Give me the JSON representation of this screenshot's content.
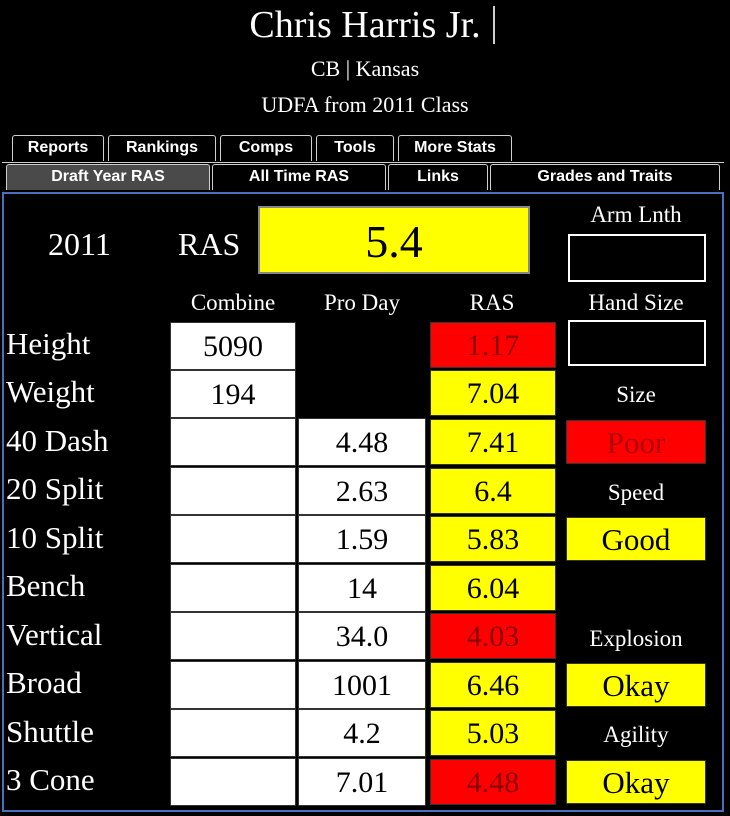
{
  "player": {
    "name": "Chris Harris Jr.",
    "position_school": "CB | Kansas",
    "draft_info": "UDFA from 2011 Class"
  },
  "tabs_top": [
    {
      "label": "Reports"
    },
    {
      "label": "Rankings"
    },
    {
      "label": "Comps"
    },
    {
      "label": "Tools"
    },
    {
      "label": "More Stats"
    }
  ],
  "tabs_bottom": [
    {
      "label": "Draft Year RAS",
      "active": true
    },
    {
      "label": "All Time RAS"
    },
    {
      "label": "Links"
    },
    {
      "label": "Grades and Traits"
    }
  ],
  "summary": {
    "year": "2011",
    "ras_label": "RAS",
    "ras_value": "5.4",
    "arm_length_label": "Arm Lnth",
    "arm_length_value": "",
    "hand_size_label": "Hand Size",
    "hand_size_value": ""
  },
  "columns": {
    "combine": "Combine",
    "pro_day": "Pro Day",
    "ras": "RAS"
  },
  "rows": [
    {
      "label": "Height",
      "combine": "5090",
      "pro_day": "",
      "ras": "1.17",
      "ras_color": "red"
    },
    {
      "label": "Weight",
      "combine": "194",
      "pro_day": "",
      "ras": "7.04",
      "ras_color": "yellow"
    },
    {
      "label": "40 Dash",
      "combine": "",
      "pro_day": "4.48",
      "ras": "7.41",
      "ras_color": "yellow"
    },
    {
      "label": "20 Split",
      "combine": "",
      "pro_day": "2.63",
      "ras": "6.4",
      "ras_color": "yellow"
    },
    {
      "label": "10 Split",
      "combine": "",
      "pro_day": "1.59",
      "ras": "5.83",
      "ras_color": "yellow"
    },
    {
      "label": "Bench",
      "combine": "",
      "pro_day": "14",
      "ras": "6.04",
      "ras_color": "yellow"
    },
    {
      "label": "Vertical",
      "combine": "",
      "pro_day": "34.0",
      "ras": "4.03",
      "ras_color": "red"
    },
    {
      "label": "Broad",
      "combine": "",
      "pro_day": "1001",
      "ras": "6.46",
      "ras_color": "yellow"
    },
    {
      "label": "Shuttle",
      "combine": "",
      "pro_day": "4.2",
      "ras": "5.03",
      "ras_color": "yellow"
    },
    {
      "label": "3 Cone",
      "combine": "",
      "pro_day": "7.01",
      "ras": "4.48",
      "ras_color": "red"
    }
  ],
  "grades": {
    "size_label": "Size",
    "size_value": "Poor",
    "speed_label": "Speed",
    "speed_value": "Good",
    "explosion_label": "Explosion",
    "explosion_value": "Okay",
    "agility_label": "Agility",
    "agility_value": "Okay"
  },
  "colors": {
    "yellow": "#ffff00",
    "red": "#ff0000",
    "white": "#ffffff",
    "panel_border": "#4a6fc0"
  }
}
